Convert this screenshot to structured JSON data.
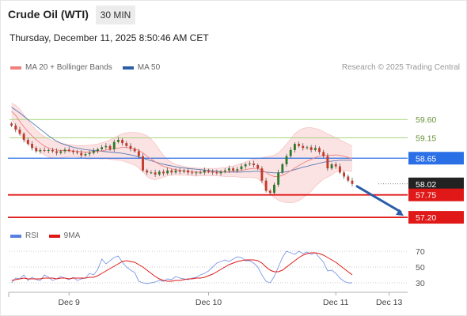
{
  "header": {
    "instrument": "Crude Oil (WTI)",
    "timeframe": "30 MIN",
    "datetime": "Thursday, December 11, 2025 8:50:46 AM CET",
    "credit": "Research © 2025 Trading Central"
  },
  "colors": {
    "bollinger": "#f08080",
    "ma50": "#2d5fa8",
    "resistance": "#a8d57e",
    "pivot": "#2b6fe6",
    "support": "#e01818",
    "rsi": "#5b7fe0",
    "rsi_ma": "#e01818",
    "arrow": "#2b5ea8",
    "candle_up": "#2a7a2a",
    "candle_down": "#c0392b"
  },
  "chart_data": [
    {
      "type": "line",
      "name": "price",
      "legend": [
        {
          "label": "MA 20 + Bollinger Bands",
          "color": "#f08080"
        },
        {
          "label": "MA 50",
          "color": "#2d5fa8"
        }
      ],
      "levels": [
        {
          "value": 59.6,
          "label": "59.60",
          "kind": "resistance"
        },
        {
          "value": 59.15,
          "label": "59.15",
          "kind": "resistance"
        },
        {
          "value": 58.65,
          "label": "58.65",
          "kind": "pivot"
        },
        {
          "value": 58.02,
          "label": "58.02",
          "kind": "last"
        },
        {
          "value": 57.75,
          "label": "57.75",
          "kind": "support"
        },
        {
          "value": 57.2,
          "label": "57.20",
          "kind": "support"
        }
      ],
      "ylim": [
        56.95,
        60.05
      ],
      "close": [
        59.45,
        59.35,
        59.25,
        59.1,
        59.0,
        58.9,
        58.82,
        58.85,
        58.83,
        58.85,
        58.82,
        58.78,
        58.82,
        58.86,
        58.83,
        58.8,
        58.78,
        58.72,
        58.75,
        58.78,
        58.83,
        58.87,
        58.92,
        58.95,
        58.87,
        59.05,
        59.1,
        59.02,
        58.95,
        58.88,
        58.82,
        58.7,
        58.35,
        58.3,
        58.3,
        58.25,
        58.32,
        58.28,
        58.35,
        58.3,
        58.35,
        58.32,
        58.35,
        58.3,
        58.28,
        58.3,
        58.3,
        58.35,
        58.32,
        58.3,
        58.28,
        58.32,
        58.35,
        58.4,
        58.35,
        58.38,
        58.45,
        58.5,
        58.52,
        58.48,
        58.4,
        58.1,
        57.85,
        57.8,
        58.0,
        58.3,
        58.5,
        58.7,
        58.85,
        59.0,
        58.95,
        58.9,
        58.92,
        58.85,
        58.9,
        58.8,
        58.7,
        58.4,
        58.5,
        58.45,
        58.3,
        58.2,
        58.1,
        58.02
      ],
      "ma20": [
        59.8,
        59.7,
        59.55,
        59.42,
        59.3,
        59.2,
        59.1,
        59.02,
        58.95,
        58.9,
        58.87,
        58.85,
        58.84,
        58.84,
        58.83,
        58.83,
        58.82,
        58.81,
        58.8,
        58.8,
        58.81,
        58.82,
        58.83,
        58.85,
        58.86,
        58.88,
        58.9,
        58.92,
        58.91,
        58.9,
        58.88,
        58.84,
        58.78,
        58.7,
        58.63,
        58.56,
        58.5,
        58.45,
        58.42,
        58.39,
        58.37,
        58.35,
        58.34,
        58.33,
        58.32,
        58.31,
        58.31,
        58.31,
        58.31,
        58.31,
        58.31,
        58.31,
        58.31,
        58.32,
        58.33,
        58.34,
        58.35,
        58.37,
        58.39,
        58.4,
        58.4,
        58.36,
        58.3,
        58.24,
        58.2,
        58.2,
        58.23,
        58.28,
        58.34,
        58.41,
        58.47,
        58.53,
        58.58,
        58.62,
        58.67,
        58.7,
        58.72,
        58.72,
        58.72,
        58.73,
        58.72,
        58.7,
        58.67,
        58.64
      ],
      "ma50": [
        59.9,
        59.83,
        59.76,
        59.68,
        59.6,
        59.52,
        59.44,
        59.36,
        59.28,
        59.2,
        59.13,
        59.07,
        59.02,
        58.98,
        58.95,
        58.92,
        58.9,
        58.88,
        58.86,
        58.85,
        58.84,
        58.83,
        58.82,
        58.81,
        58.8,
        58.79,
        58.78,
        58.77,
        58.75,
        58.73,
        58.71,
        58.68,
        58.65,
        58.62,
        58.59,
        58.56,
        58.53,
        58.5,
        58.48,
        58.46,
        58.44,
        58.42,
        58.41,
        58.4,
        58.39,
        58.38,
        58.37,
        58.36,
        58.35,
        58.34,
        58.33,
        58.32,
        58.31,
        58.31,
        58.31,
        58.31,
        58.31,
        58.32,
        58.32,
        58.33,
        58.33,
        58.32,
        58.31,
        58.3,
        58.29,
        58.29,
        58.3,
        58.32,
        58.34,
        58.37,
        58.4,
        58.43,
        58.45,
        58.48,
        58.5,
        58.53,
        58.55,
        58.57,
        58.58,
        58.59,
        58.6,
        58.6,
        58.6,
        58.6
      ],
      "bb_upper": [
        60.0,
        59.95,
        59.85,
        59.72,
        59.58,
        59.45,
        59.35,
        59.25,
        59.18,
        59.12,
        59.08,
        59.05,
        59.02,
        59.0,
        58.98,
        58.97,
        58.96,
        58.96,
        58.96,
        58.97,
        58.98,
        59.0,
        59.03,
        59.06,
        59.1,
        59.15,
        59.2,
        59.25,
        59.27,
        59.28,
        59.28,
        59.27,
        59.24,
        59.2,
        59.12,
        59.0,
        58.85,
        58.72,
        58.62,
        58.55,
        58.5,
        58.47,
        58.45,
        58.43,
        58.42,
        58.41,
        58.4,
        58.4,
        58.4,
        58.4,
        58.4,
        58.41,
        58.42,
        58.44,
        58.46,
        58.49,
        58.52,
        58.56,
        58.6,
        58.63,
        58.65,
        58.66,
        58.68,
        58.7,
        58.72,
        58.78,
        58.88,
        59.0,
        59.12,
        59.25,
        59.33,
        59.38,
        59.4,
        59.4,
        59.38,
        59.35,
        59.3,
        59.25,
        59.2,
        59.15,
        59.1,
        59.05,
        59.0,
        58.95
      ],
      "bb_lower": [
        59.6,
        59.45,
        59.25,
        59.1,
        59.0,
        58.95,
        58.85,
        58.8,
        58.73,
        58.68,
        58.66,
        58.65,
        58.66,
        58.68,
        58.68,
        58.69,
        58.68,
        58.66,
        58.64,
        58.63,
        58.64,
        58.64,
        58.63,
        58.64,
        58.62,
        58.61,
        58.6,
        58.59,
        58.55,
        58.52,
        58.48,
        58.41,
        58.32,
        58.2,
        58.14,
        58.12,
        58.15,
        58.18,
        58.22,
        58.23,
        58.24,
        58.23,
        58.23,
        58.23,
        58.22,
        58.21,
        58.22,
        58.22,
        58.22,
        58.22,
        58.22,
        58.21,
        58.2,
        58.2,
        58.2,
        58.19,
        58.18,
        58.18,
        58.18,
        58.17,
        58.15,
        58.06,
        57.92,
        57.78,
        57.68,
        57.62,
        57.58,
        57.56,
        57.56,
        57.57,
        57.61,
        57.68,
        57.76,
        57.84,
        57.96,
        58.05,
        58.14,
        58.19,
        58.24,
        58.31,
        58.34,
        58.35,
        58.34,
        58.33
      ],
      "projection": {
        "from": 58.02,
        "to": 57.2
      }
    },
    {
      "type": "line",
      "name": "rsi",
      "legend": [
        {
          "label": "RSI",
          "color": "#5b7fe0"
        },
        {
          "label": "9MA",
          "color": "#e01818"
        }
      ],
      "ylim": [
        22,
        78
      ],
      "yticks": [
        70,
        50,
        30
      ],
      "rsi": [
        30,
        36,
        35,
        40,
        33,
        37,
        34,
        33,
        40,
        37,
        33,
        35,
        38,
        36,
        34,
        37,
        33,
        35,
        36,
        42,
        40,
        47,
        60,
        54,
        58,
        62,
        64,
        56,
        50,
        46,
        43,
        32,
        30,
        29,
        30,
        31,
        33,
        32,
        35,
        34,
        38,
        36,
        35,
        34,
        36,
        37,
        40,
        42,
        45,
        50,
        55,
        57,
        59,
        57,
        60,
        63,
        62,
        58,
        58,
        55,
        50,
        40,
        32,
        30,
        38,
        50,
        62,
        70,
        68,
        66,
        70,
        67,
        69,
        66,
        68,
        62,
        56,
        45,
        46,
        42,
        36,
        32,
        30,
        30
      ],
      "rsi_ma": [
        33,
        34,
        35,
        36,
        35,
        35,
        35,
        35,
        36,
        36,
        36,
        35,
        36,
        36,
        35,
        36,
        36,
        36,
        36,
        37,
        37,
        39,
        42,
        45,
        48,
        51,
        54,
        57,
        58,
        57,
        56,
        53,
        50,
        46,
        42,
        38,
        35,
        33,
        32,
        32,
        33,
        33,
        34,
        35,
        35,
        36,
        36,
        37,
        39,
        41,
        44,
        47,
        50,
        53,
        55,
        57,
        58,
        59,
        59,
        59,
        58,
        55,
        50,
        46,
        44,
        44,
        46,
        50,
        54,
        58,
        62,
        65,
        67,
        68,
        68,
        67,
        65,
        62,
        59,
        56,
        52,
        48,
        44,
        40
      ]
    }
  ],
  "xaxis": {
    "labels": [
      "Dec 9",
      "Dec 10",
      "Dec 11",
      "Dec 13"
    ],
    "label_index": [
      14,
      48,
      79,
      92
    ],
    "total_slots": 97
  }
}
